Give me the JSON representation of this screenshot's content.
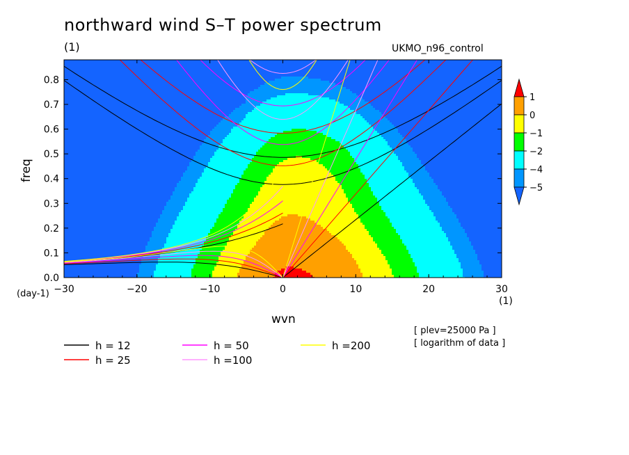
{
  "figure": {
    "title": "northward wind S–T power spectrum",
    "units_left": "(1)",
    "model": "UKMO_n96_control",
    "notes": [
      "[ plev=25000 Pa ]",
      "[ logarithm of data ]"
    ]
  },
  "chart_data": {
    "type": "heatmap",
    "xlabel": "wvn",
    "ylabel": "freq",
    "x_unit": "(1)",
    "y_unit": "(day-1)",
    "xlim": [
      -30,
      30
    ],
    "ylim": [
      0,
      0.88
    ],
    "x_ticks": [
      -30,
      -20,
      -10,
      0,
      10,
      20,
      30
    ],
    "y_ticks": [
      0.0,
      0.1,
      0.2,
      0.3,
      0.4,
      0.5,
      0.6,
      0.7,
      0.8
    ],
    "x_tick_labels": [
      "−30",
      "−20",
      "−10",
      "0",
      "10",
      "20",
      "30"
    ],
    "y_tick_labels": [
      "0.0",
      "0.1",
      "0.2",
      "0.3",
      "0.4",
      "0.5",
      "0.6",
      "0.7",
      "0.8"
    ],
    "colorbar": {
      "levels": [
        -5,
        -4,
        -2,
        -1,
        0,
        1
      ],
      "labels": [
        "−5",
        "−4",
        "−2",
        "−1",
        "0",
        "1"
      ],
      "colors": [
        "#1464ff",
        "#0096ff",
        "#00ffff",
        "#00ff00",
        "#ffff00",
        "#ffa000",
        "#ff0000"
      ]
    },
    "dispersion_curves": [
      {
        "label": "h = 12",
        "color": "#000000"
      },
      {
        "label": "h = 25",
        "color": "#ff0000"
      },
      {
        "label": "h = 50",
        "color": "#ff00ff"
      },
      {
        "label": "h =100",
        "color": "#ff96ff"
      },
      {
        "label": "h =200",
        "color": "#ffff00"
      }
    ]
  }
}
